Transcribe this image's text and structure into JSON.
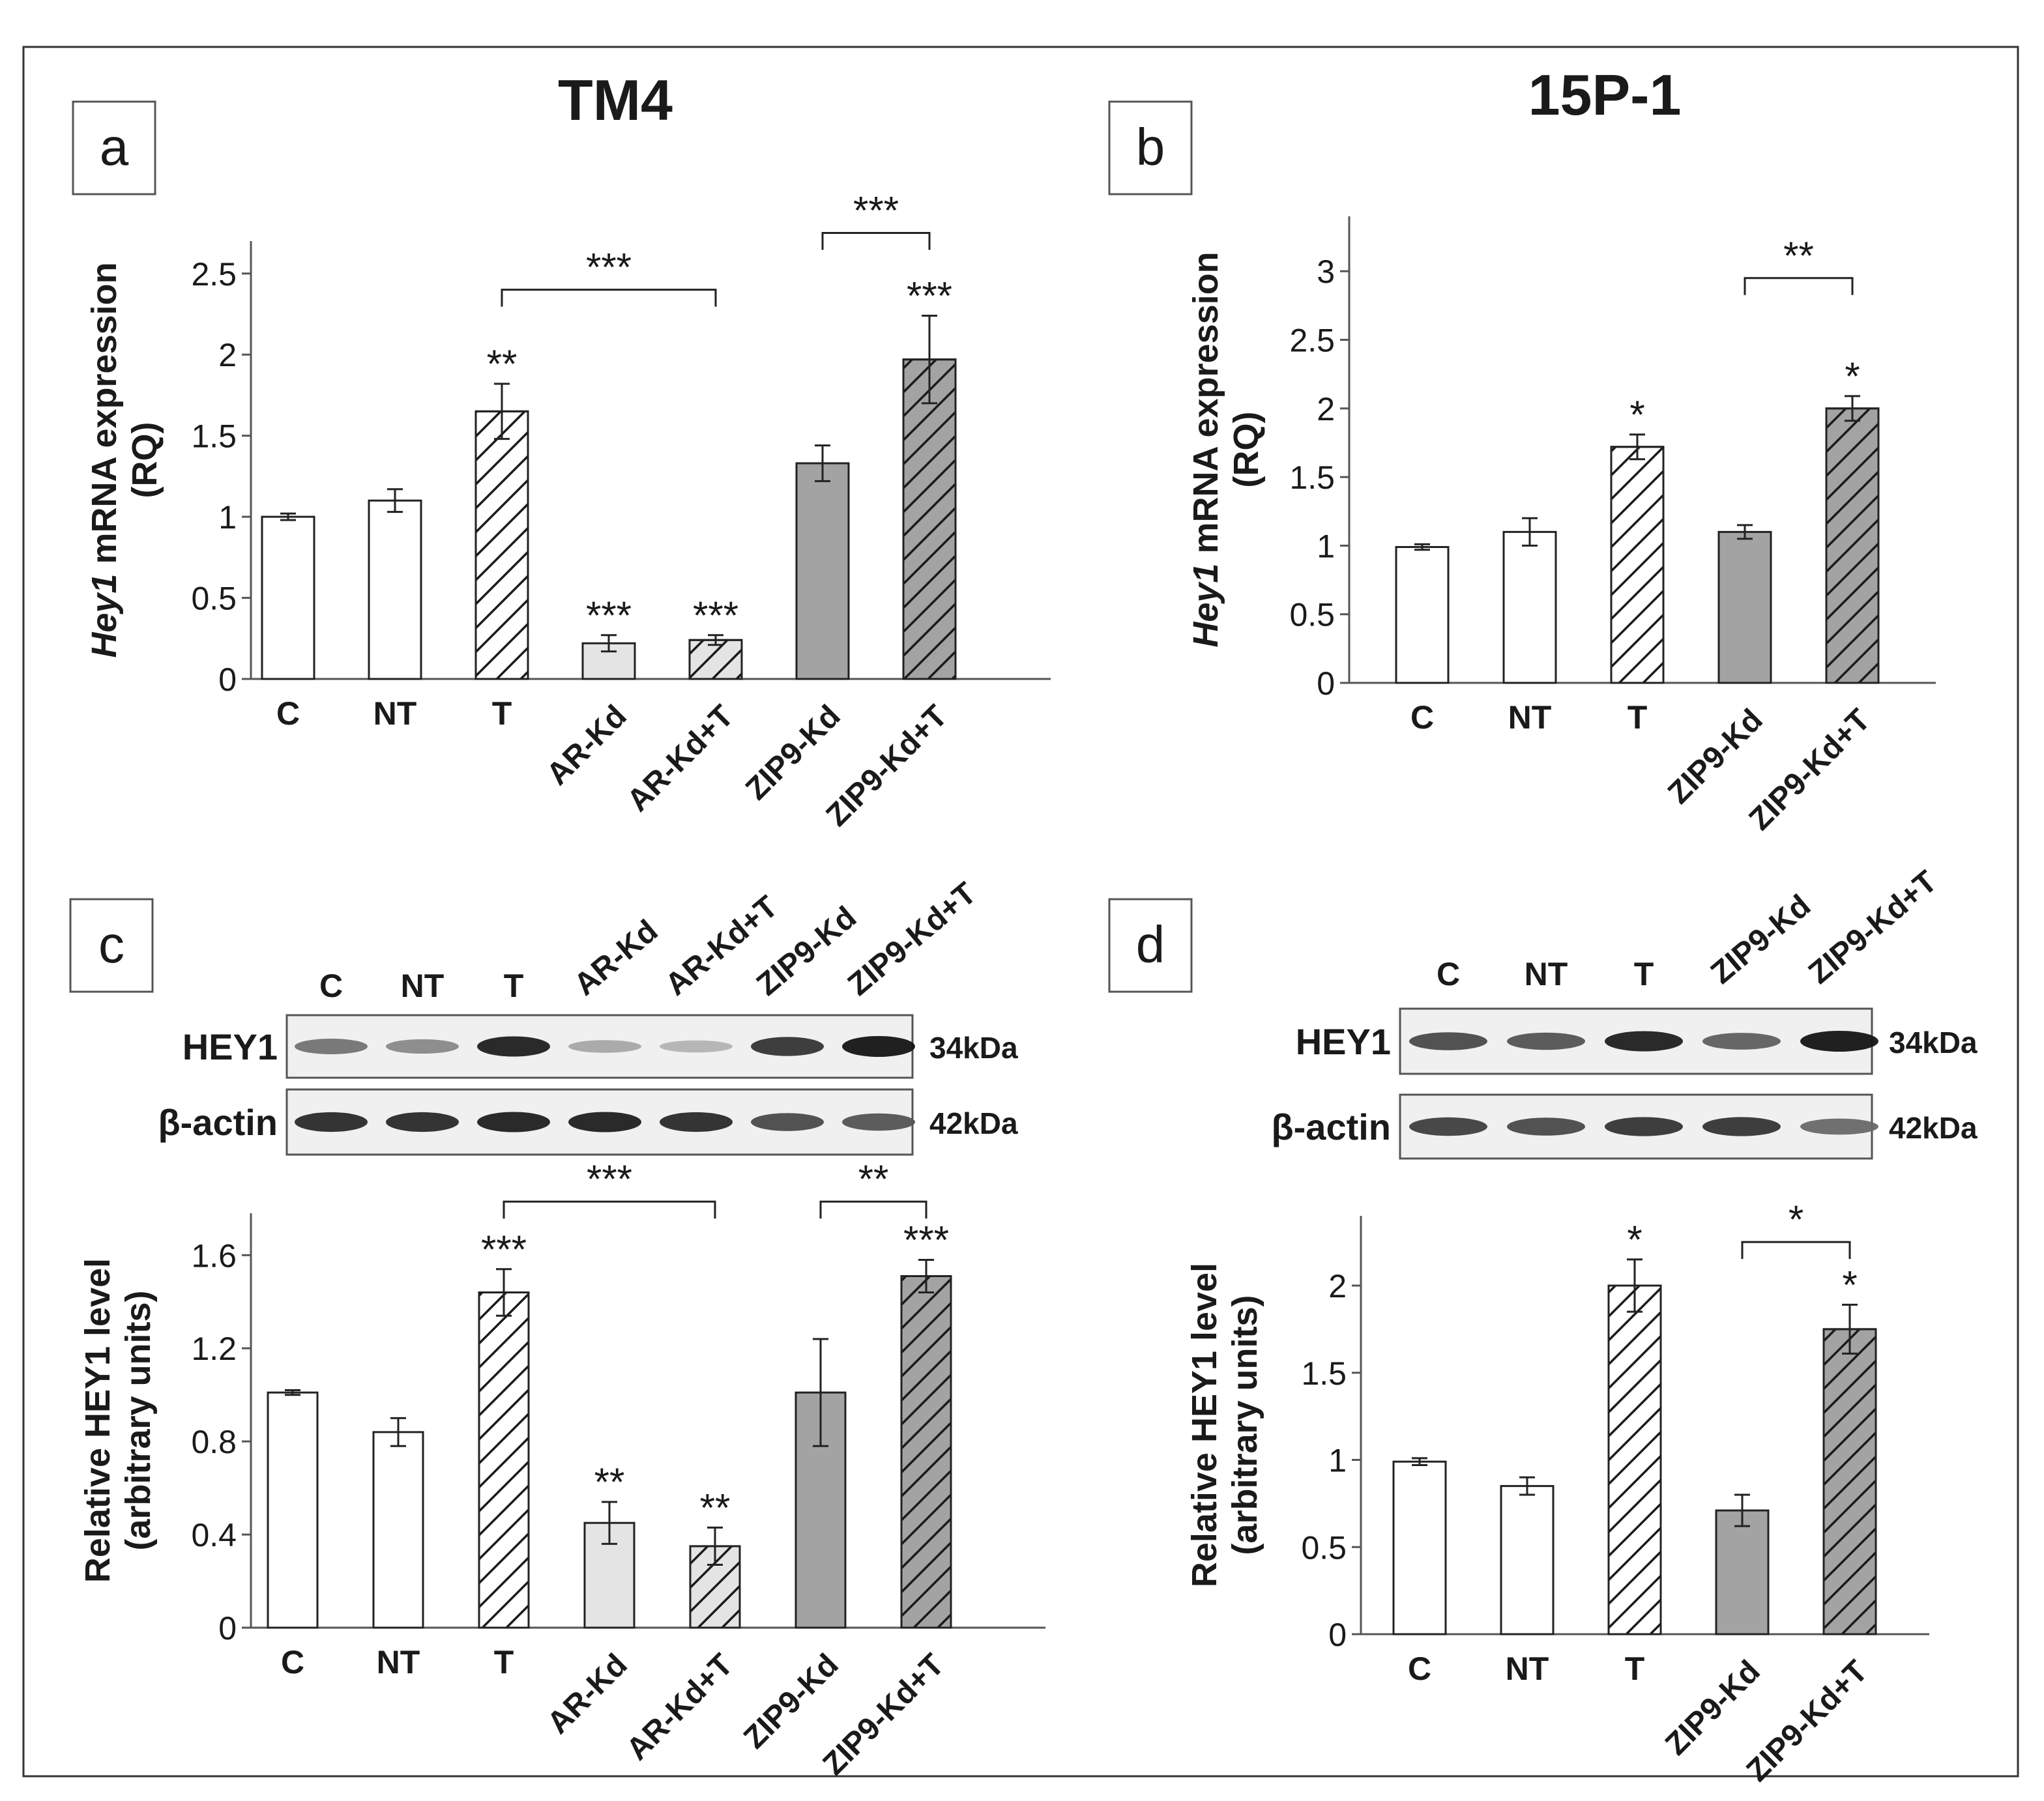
{
  "figure": {
    "panels": {
      "a": "a",
      "b": "b",
      "c": "c",
      "d": "d"
    },
    "titles": {
      "tm4": "TM4",
      "p15": "15P-1"
    }
  },
  "colors": {
    "white_fill": "#ffffff",
    "light_gray_fill": "#e4e4e4",
    "dark_gray_fill": "#a3a3a3",
    "stroke": "#222222"
  },
  "western_c": {
    "lanes": [
      "C",
      "NT",
      "T",
      "AR-Kd",
      "AR-Kd+T",
      "ZIP9-Kd",
      "ZIP9-Kd+T"
    ],
    "rows": [
      {
        "label": "HEY1",
        "size": "34kDa",
        "intensities": [
          0.55,
          0.45,
          0.95,
          0.3,
          0.25,
          0.85,
          1.0
        ]
      },
      {
        "label": "β-actin",
        "size": "42kDa",
        "intensities": [
          0.9,
          0.9,
          0.95,
          0.95,
          0.9,
          0.75,
          0.7
        ]
      }
    ]
  },
  "western_d": {
    "lanes": [
      "C",
      "NT",
      "T",
      "ZIP9-Kd",
      "ZIP9-Kd+T"
    ],
    "rows": [
      {
        "label": "HEY1",
        "size": "34kDa",
        "intensities": [
          0.75,
          0.7,
          0.95,
          0.65,
          1.0
        ]
      },
      {
        "label": "β-actin",
        "size": "42kDa",
        "intensities": [
          0.8,
          0.75,
          0.85,
          0.85,
          0.6
        ]
      }
    ]
  },
  "chart_data": [
    {
      "id": "a",
      "type": "bar",
      "title": "TM4",
      "ylabel_italic": "Hey1",
      "ylabel_rest": " mRNA expression",
      "ylabel_line2": "(RQ)",
      "ylim": [
        0,
        2.7
      ],
      "yticks": [
        0,
        0.5,
        1,
        1.5,
        2,
        2.5
      ],
      "ytick_labels": [
        "0",
        "0.5",
        "1",
        "1.5",
        "2",
        "2.5"
      ],
      "categories": [
        "C",
        "NT",
        "T",
        "AR-Kd",
        "AR-Kd+T",
        "ZIP9-Kd",
        "ZIP9-Kd+T"
      ],
      "values": [
        1.0,
        1.1,
        1.65,
        0.22,
        0.24,
        1.33,
        1.97
      ],
      "errors": [
        0.02,
        0.07,
        0.17,
        0.05,
        0.03,
        0.11,
        0.27
      ],
      "fills": [
        "white",
        "white",
        "white",
        "lightgray",
        "lightgray",
        "darkgray",
        "darkgray"
      ],
      "hatched": [
        false,
        false,
        true,
        false,
        true,
        false,
        true
      ],
      "significance": [
        "",
        "",
        "**",
        "***",
        "***",
        "",
        "***"
      ],
      "brackets": [
        {
          "from": 2,
          "to": 4,
          "label": "***",
          "y": 2.4
        },
        {
          "from": 5,
          "to": 6,
          "label": "***",
          "y": 2.75
        }
      ]
    },
    {
      "id": "b",
      "type": "bar",
      "title": "15P-1",
      "ylabel_italic": "Hey1",
      "ylabel_rest": " mRNA expression",
      "ylabel_line2": "(RQ)",
      "ylim": [
        0,
        3.4
      ],
      "yticks": [
        0,
        0.5,
        1,
        1.5,
        2,
        2.5,
        3
      ],
      "ytick_labels": [
        "0",
        "0.5",
        "1",
        "1.5",
        "2",
        "2.5",
        "3"
      ],
      "categories": [
        "C",
        "NT",
        "T",
        "ZIP9-Kd",
        "ZIP9-Kd+T"
      ],
      "values": [
        0.99,
        1.1,
        1.72,
        1.1,
        2.0
      ],
      "errors": [
        0.02,
        0.1,
        0.09,
        0.05,
        0.09
      ],
      "fills": [
        "white",
        "white",
        "white",
        "darkgray",
        "darkgray"
      ],
      "hatched": [
        false,
        false,
        true,
        false,
        true
      ],
      "significance": [
        "",
        "",
        "*",
        "",
        "*"
      ],
      "brackets": [
        {
          "from": 3,
          "to": 4,
          "label": "**",
          "y": 2.95
        }
      ]
    },
    {
      "id": "c",
      "type": "bar",
      "title": "",
      "ylabel_italic": "",
      "ylabel_rest": "Relative HEY1 level",
      "ylabel_line2": "(arbitrary units)",
      "ylim": [
        0,
        1.78
      ],
      "yticks": [
        0,
        0.4,
        0.8,
        1.2,
        1.6
      ],
      "ytick_labels": [
        "0",
        "0.4",
        "0.8",
        "1.2",
        "1.6"
      ],
      "categories": [
        "C",
        "NT",
        "T",
        "AR-Kd",
        "AR-Kd+T",
        "ZIP9-Kd",
        "ZIP9-Kd+T"
      ],
      "values": [
        1.01,
        0.84,
        1.44,
        0.45,
        0.35,
        1.01,
        1.51
      ],
      "errors": [
        0.01,
        0.06,
        0.1,
        0.09,
        0.08,
        0.23,
        0.07
      ],
      "fills": [
        "white",
        "white",
        "white",
        "lightgray",
        "lightgray",
        "darkgray",
        "darkgray"
      ],
      "hatched": [
        false,
        false,
        true,
        false,
        true,
        false,
        true
      ],
      "significance": [
        "",
        "",
        "***",
        "**",
        "**",
        "",
        "***"
      ],
      "brackets": [
        {
          "from": 2,
          "to": 4,
          "label": "***",
          "y": 1.83
        },
        {
          "from": 5,
          "to": 6,
          "label": "**",
          "y": 1.83
        }
      ]
    },
    {
      "id": "d",
      "type": "bar",
      "title": "",
      "ylabel_italic": "",
      "ylabel_rest": "Relative HEY1 level",
      "ylabel_line2": "(arbitrary units)",
      "ylim": [
        0,
        2.4
      ],
      "yticks": [
        0,
        0.5,
        1,
        1.5,
        2
      ],
      "ytick_labels": [
        "0",
        "0.5",
        "1",
        "1.5",
        "2"
      ],
      "categories": [
        "C",
        "NT",
        "T",
        "ZIP9-Kd",
        "ZIP9-Kd+T"
      ],
      "values": [
        0.99,
        0.85,
        2.0,
        0.71,
        1.75
      ],
      "errors": [
        0.02,
        0.05,
        0.15,
        0.09,
        0.14
      ],
      "fills": [
        "white",
        "white",
        "white",
        "darkgray",
        "darkgray"
      ],
      "hatched": [
        false,
        false,
        true,
        false,
        true
      ],
      "significance": [
        "",
        "",
        "*",
        "",
        "*"
      ],
      "brackets": [
        {
          "from": 3,
          "to": 4,
          "label": "*",
          "y": 2.25
        }
      ]
    }
  ]
}
